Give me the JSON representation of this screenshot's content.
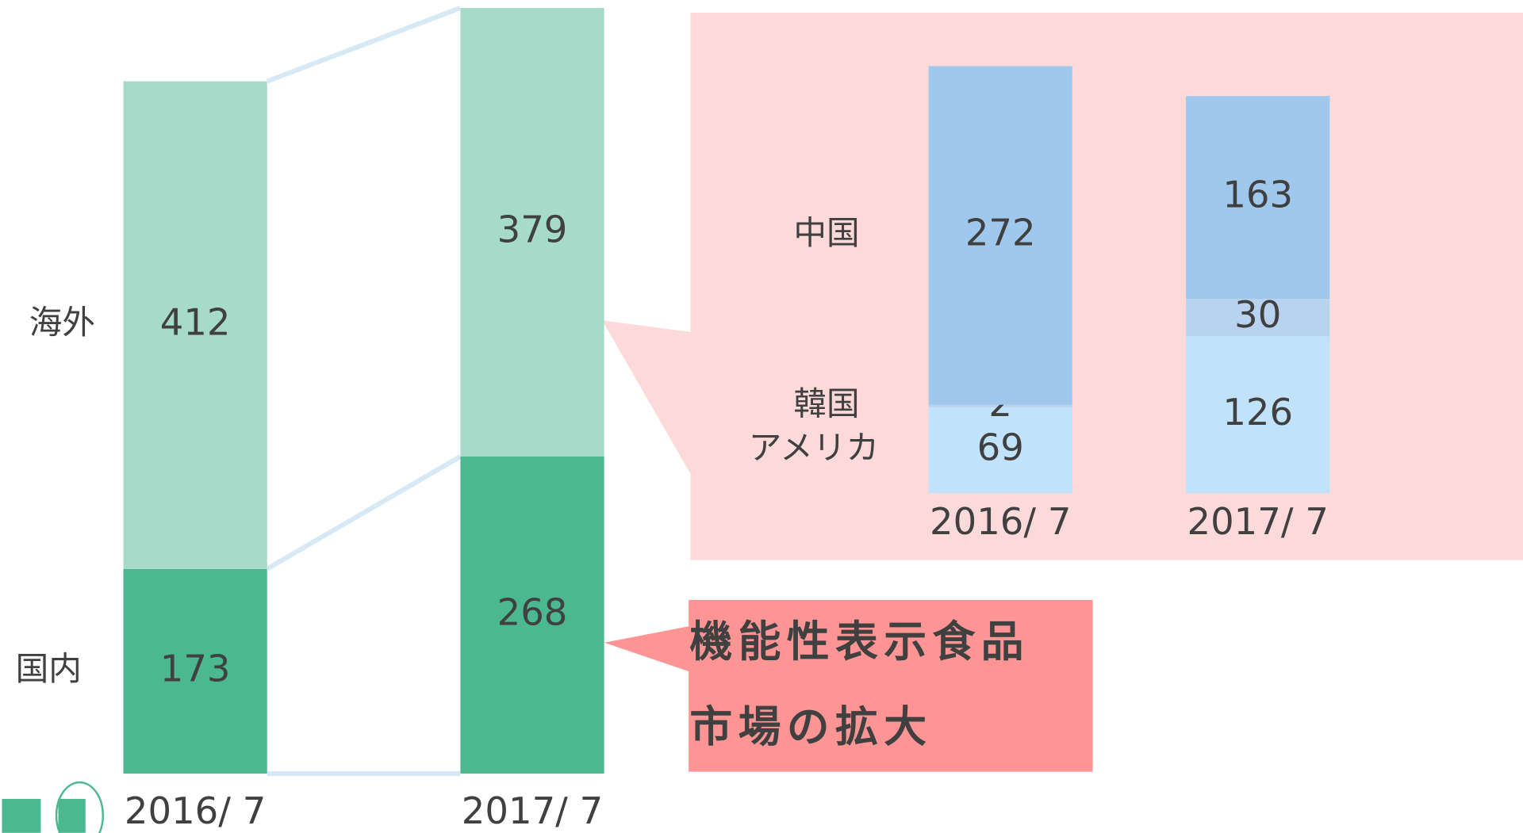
{
  "chart_data": [
    {
      "type": "stacked-bar",
      "categories": [
        "2016/ 7",
        "2017/ 7"
      ],
      "series": [
        {
          "name": "国内",
          "color": "#4bb891",
          "values": [
            173,
            268
          ]
        },
        {
          "name": "海外",
          "color": "#a6dbc9",
          "values": [
            412,
            379
          ]
        }
      ],
      "annotation": [
        "機能性表示食品",
        "市場の拡大"
      ]
    },
    {
      "type": "stacked-bar",
      "categories": [
        "2016/ 7",
        "2017/ 7"
      ],
      "series": [
        {
          "name": "アメリカ",
          "color": "#c0e3fb",
          "values": [
            69,
            126
          ]
        },
        {
          "name": "韓国",
          "color": "#b8d3ef",
          "values": [
            2,
            30
          ]
        },
        {
          "name": "中国",
          "color": "#9fc8ec",
          "values": [
            272,
            163
          ]
        }
      ]
    }
  ]
}
